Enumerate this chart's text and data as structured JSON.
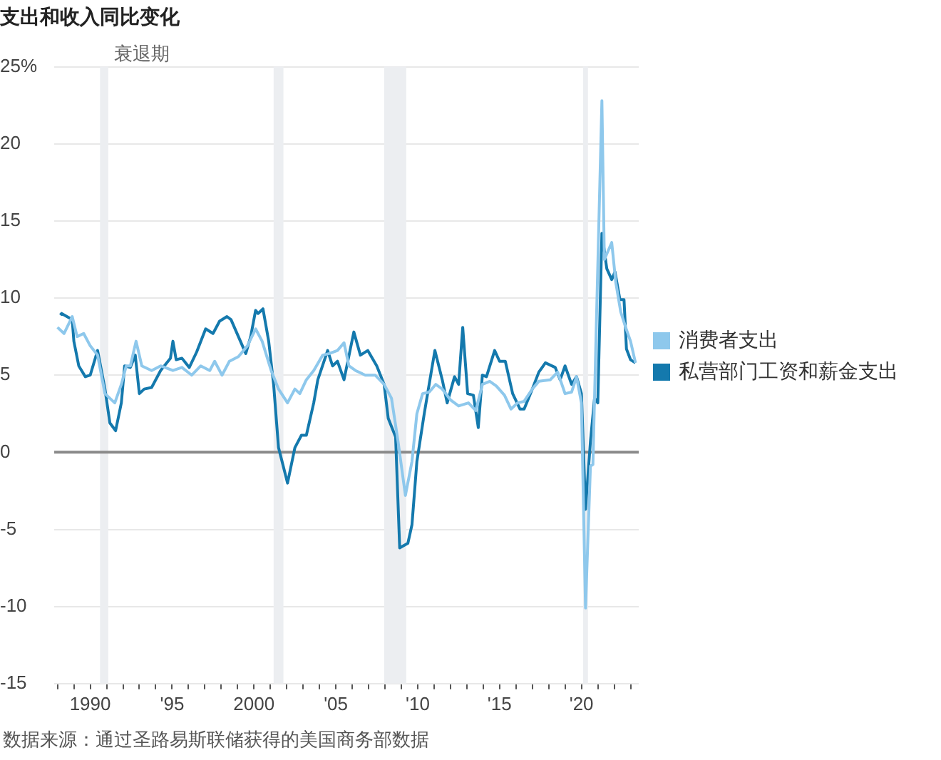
{
  "chart_data": {
    "type": "line",
    "title": "支出和收入同比变化",
    "xlim": [
      1987.8,
      2023.5
    ],
    "xticks": [
      {
        "value": 1988,
        "label": null
      },
      {
        "value": 1989,
        "label": null
      },
      {
        "value": 1990,
        "label": "1990"
      },
      {
        "value": 1991,
        "label": null
      },
      {
        "value": 1992,
        "label": null
      },
      {
        "value": 1993,
        "label": null
      },
      {
        "value": 1994,
        "label": null
      },
      {
        "value": 1995,
        "label": "'95"
      },
      {
        "value": 1996,
        "label": null
      },
      {
        "value": 1997,
        "label": null
      },
      {
        "value": 1998,
        "label": null
      },
      {
        "value": 1999,
        "label": null
      },
      {
        "value": 2000,
        "label": "2000"
      },
      {
        "value": 2001,
        "label": null
      },
      {
        "value": 2002,
        "label": null
      },
      {
        "value": 2003,
        "label": null
      },
      {
        "value": 2004,
        "label": null
      },
      {
        "value": 2005,
        "label": "'05"
      },
      {
        "value": 2006,
        "label": null
      },
      {
        "value": 2007,
        "label": null
      },
      {
        "value": 2008,
        "label": null
      },
      {
        "value": 2009,
        "label": null
      },
      {
        "value": 2010,
        "label": "'10"
      },
      {
        "value": 2011,
        "label": null
      },
      {
        "value": 2012,
        "label": null
      },
      {
        "value": 2013,
        "label": null
      },
      {
        "value": 2014,
        "label": null
      },
      {
        "value": 2015,
        "label": "'15"
      },
      {
        "value": 2016,
        "label": null
      },
      {
        "value": 2017,
        "label": null
      },
      {
        "value": 2018,
        "label": null
      },
      {
        "value": 2019,
        "label": null
      },
      {
        "value": 2020,
        "label": "'20"
      },
      {
        "value": 2021,
        "label": null
      },
      {
        "value": 2022,
        "label": null
      },
      {
        "value": 2023,
        "label": null
      }
    ],
    "ylim": [
      -15,
      25
    ],
    "yticks": [
      -15,
      -10,
      -5,
      0,
      5,
      10,
      15,
      20,
      {
        "value": 25,
        "label": "25%"
      }
    ],
    "grid": "y",
    "legend": "right",
    "bands": [
      {
        "axis": "x",
        "from": 1990.6,
        "to": 1991.1,
        "label": "衰退期",
        "color": "#eceef1"
      },
      {
        "axis": "x",
        "from": 2001.2,
        "to": 2001.8,
        "color": "#eceef1"
      },
      {
        "axis": "x",
        "from": 2007.95,
        "to": 2009.3,
        "color": "#eceef1"
      },
      {
        "axis": "x",
        "from": 2020.1,
        "to": 2020.4,
        "color": "#eceef1"
      }
    ],
    "ref_lines": [
      {
        "axis": "y",
        "value": 0,
        "color": "#8a8a8a"
      }
    ],
    "annotations": [
      "数据来源：通过圣路易斯联储获得的美国商务部数据"
    ],
    "series": [
      {
        "name": "消费者支出",
        "color": "#8ec8ec",
        "x": [
          1988.0,
          1988.4,
          1988.9,
          1989.2,
          1989.6,
          1990.0,
          1990.45,
          1990.9,
          1991.5,
          1991.9,
          1992.2,
          1992.45,
          1992.8,
          1993.15,
          1993.75,
          1994.3,
          1995.05,
          1995.6,
          1996.2,
          1996.75,
          1997.3,
          1997.6,
          1998.05,
          1998.5,
          1999.05,
          1999.6,
          2000.1,
          2000.5,
          2001.05,
          2001.5,
          2002.05,
          2002.5,
          2002.8,
          2003.2,
          2003.65,
          2004.2,
          2004.6,
          2005.1,
          2005.5,
          2005.8,
          2006.2,
          2006.8,
          2007.4,
          2007.95,
          2008.4,
          2008.8,
          2009.25,
          2009.65,
          2009.95,
          2010.3,
          2010.7,
          2011.1,
          2011.5,
          2012.0,
          2012.5,
          2013.1,
          2013.55,
          2013.95,
          2014.4,
          2014.8,
          2015.3,
          2015.7,
          2016.1,
          2016.5,
          2017.0,
          2017.4,
          2018.1,
          2018.55,
          2019.0,
          2019.4,
          2019.7,
          2020.0,
          2020.25,
          2020.55,
          2020.7,
          2021.25,
          2021.4,
          2021.85,
          2022.1,
          2022.4,
          2022.7,
          2023.0,
          2023.3
        ],
        "values": [
          8.1,
          7.7,
          8.8,
          7.5,
          7.7,
          6.9,
          6.3,
          3.8,
          3.2,
          4.4,
          5.6,
          5.6,
          7.2,
          5.6,
          5.3,
          5.6,
          5.3,
          5.5,
          5.0,
          5.6,
          5.3,
          5.9,
          5.0,
          5.9,
          6.2,
          6.9,
          8.0,
          7.2,
          5.3,
          4.1,
          3.2,
          4.1,
          3.8,
          4.7,
          5.3,
          6.3,
          6.4,
          6.6,
          7.1,
          5.6,
          5.3,
          5.0,
          5.0,
          4.4,
          3.5,
          0.7,
          -2.8,
          -0.6,
          2.5,
          3.8,
          3.9,
          4.4,
          4.1,
          3.4,
          3.0,
          3.2,
          2.7,
          4.4,
          4.6,
          4.3,
          3.7,
          2.8,
          3.2,
          3.3,
          4.1,
          4.6,
          4.7,
          5.2,
          3.8,
          3.9,
          4.9,
          3.2,
          -10.1,
          -0.9,
          -0.8,
          22.8,
          12.5,
          13.6,
          11.0,
          9.1,
          8.1,
          7.2,
          5.8
        ]
      },
      {
        "name": "私营部门工资和薪金支出",
        "color": "#1479ad",
        "x": [
          1988.17,
          1988.25,
          1988.9,
          1989.0,
          1989.3,
          1989.7,
          1990.0,
          1990.45,
          1990.9,
          1991.2,
          1991.55,
          1991.9,
          1992.1,
          1992.45,
          1992.75,
          1993.0,
          1993.3,
          1993.75,
          1994.3,
          1994.9,
          1995.05,
          1995.25,
          1995.6,
          1996.05,
          1996.5,
          1997.05,
          1997.5,
          1997.9,
          1998.35,
          1998.6,
          1999.05,
          1999.5,
          1999.8,
          2000.1,
          2000.25,
          2000.55,
          2000.9,
          2001.2,
          2001.5,
          2002.05,
          2002.5,
          2002.9,
          2003.2,
          2003.65,
          2003.9,
          2004.5,
          2004.8,
          2005.1,
          2005.5,
          2006.1,
          2006.5,
          2006.95,
          2007.5,
          2007.95,
          2008.2,
          2008.65,
          2008.9,
          2009.4,
          2009.65,
          2009.95,
          2010.4,
          2010.7,
          2011.05,
          2011.5,
          2011.8,
          2012.25,
          2012.5,
          2012.75,
          2013.05,
          2013.4,
          2013.7,
          2013.95,
          2014.2,
          2014.7,
          2015.0,
          2015.35,
          2015.8,
          2016.25,
          2016.5,
          2017.0,
          2017.4,
          2017.8,
          2018.4,
          2018.7,
          2019.0,
          2019.4,
          2019.7,
          2020.0,
          2020.25,
          2020.55,
          2020.8,
          2021.0,
          2021.25,
          2021.55,
          2021.85,
          2022.05,
          2022.35,
          2022.6,
          2022.75,
          2023.0,
          2023.3
        ],
        "values": [
          8.9,
          9.0,
          8.6,
          7.2,
          5.6,
          4.9,
          5.0,
          6.6,
          4.1,
          1.9,
          1.4,
          3.2,
          5.6,
          5.5,
          6.3,
          3.8,
          4.1,
          4.2,
          5.3,
          6.1,
          7.2,
          6.0,
          6.1,
          5.5,
          6.5,
          8.0,
          7.7,
          8.5,
          8.8,
          8.6,
          7.5,
          6.4,
          7.5,
          9.2,
          9.0,
          9.3,
          7.2,
          4.4,
          0.3,
          -2.0,
          0.3,
          1.1,
          1.1,
          3.2,
          4.7,
          6.6,
          5.6,
          5.9,
          4.7,
          7.8,
          6.3,
          6.6,
          5.6,
          4.4,
          2.2,
          1.0,
          -6.2,
          -5.9,
          -4.7,
          -0.6,
          2.5,
          4.4,
          6.6,
          4.7,
          3.2,
          4.9,
          4.4,
          8.1,
          3.8,
          3.7,
          1.6,
          5.0,
          4.9,
          6.6,
          5.9,
          5.9,
          3.8,
          2.8,
          2.8,
          4.1,
          5.2,
          5.8,
          5.5,
          4.7,
          5.6,
          4.4,
          4.9,
          3.8,
          -3.7,
          0.7,
          3.5,
          3.2,
          14.2,
          11.9,
          11.2,
          11.7,
          9.9,
          9.9,
          6.7,
          6.0,
          5.8
        ]
      }
    ]
  }
}
